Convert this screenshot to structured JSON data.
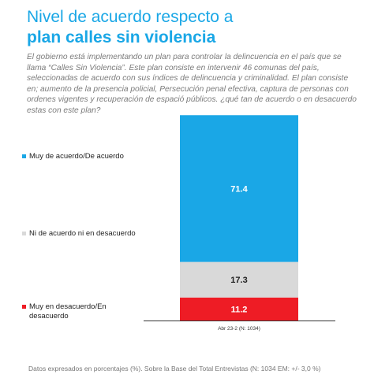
{
  "title_line1": "Nivel de acuerdo respecto a",
  "title_line2": "plan calles sin violencia",
  "question": "El gobierno está implementando un plan para controlar la delincuencia en el país que se llama “Calles Sin Violencia”. Este plan consiste en intervenir 46 comunas del país, seleccionadas de acuerdo con sus índices de delincuencia y criminalidad. El plan consiste en; aumento de la presencia policial, Persecución penal efectiva, captura de personas con ordenes vigentes y recuperación de espació públicos. ¿qué tan de acuerdo o en desacuerdo estas con este plan?",
  "footnote": "Datos expresados en porcentajes (%). Sobre la Base del Total Entrevistas (N: 1034  EM: +/- 3,0 %)",
  "chart_data": {
    "type": "bar",
    "stacked": true,
    "categories": [
      "Abr 23-2 (N: 1034)"
    ],
    "series": [
      {
        "name": "Muy en desacuerdo/En desacuerdo",
        "values": [
          11.2
        ],
        "color": "#ee1c25"
      },
      {
        "name": "Ni de acuerdo ni en desacuerdo",
        "values": [
          17.3
        ],
        "color": "#d9d9d9"
      },
      {
        "name": "Muy de acuerdo/De acuerdo",
        "values": [
          71.4
        ],
        "color": "#1aa7e6"
      }
    ],
    "ylim": [
      0,
      100
    ],
    "legend_position": "left",
    "grid": false
  }
}
